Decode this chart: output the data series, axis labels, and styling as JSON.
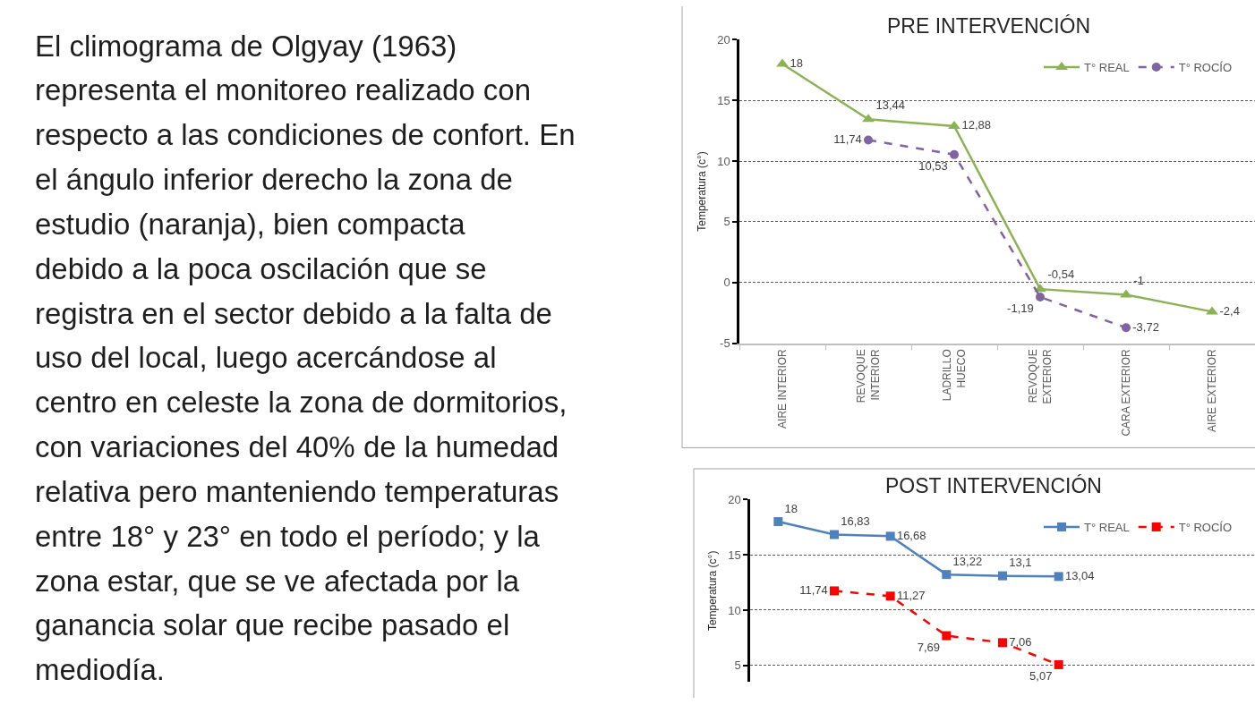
{
  "chart_data": [
    {
      "type": "other",
      "annotations": [
        "El climograma de Olgyay (1963)",
        "representa el monitoreo realizado con",
        "respecto a las condiciones de confort. En",
        "el ángulo inferior derecho la zona de",
        "estudio (naranja), bien compacta",
        "debido a la poca oscilación que se",
        "registra en el sector debido a la falta de",
        "uso del local, luego acercándose al",
        "centro en celeste la zona de dormitorios,",
        "con variaciones del 40% de la humedad",
        "relativa pero manteniendo temperaturas",
        "entre 18° y 23° en todo el período; y la",
        "zona estar, que se ve afectada por la",
        "ganancia solar que recibe pasado el",
        "mediodía."
      ]
    },
    {
      "type": "line",
      "title": "PRE INTERVENCIÓN",
      "ylabel": "Temperatura (c°)",
      "categories": [
        "AIRE INTERIOR",
        "REVOQUE\nINTERIOR",
        "LADRILLO\nHUECO",
        "REVOQUE\nEXTERIOR",
        "CARA EXTERIOR",
        "AIRE EXTERIOR"
      ],
      "series": [
        {
          "name": "T° REAL",
          "color": "#8db255",
          "marker": "triangle",
          "line_style": "solid",
          "values": [
            18,
            13.44,
            12.88,
            -0.54,
            -1,
            -2.4
          ],
          "value_labels": [
            "18",
            "13,44",
            "12,88",
            "-0,54",
            "-1",
            "-2,4"
          ]
        },
        {
          "name": "T° ROCÍO",
          "color": "#8064a2",
          "marker": "circle",
          "line_style": "dashed",
          "values": [
            null,
            11.74,
            10.53,
            -1.19,
            -3.72,
            null
          ],
          "value_labels": [
            null,
            "11,74",
            "10,53",
            "-1,19",
            "-3,72",
            null
          ]
        }
      ],
      "ylim": [
        -5,
        20
      ],
      "yticks": [
        -5,
        0,
        5,
        10,
        15,
        20
      ],
      "grid": "y",
      "legend": "top right"
    },
    {
      "type": "line",
      "title": "POST INTERVENCIÓN",
      "ylabel": "Temperatura (c°)",
      "categories": [
        null,
        null,
        null,
        null,
        null,
        null,
        null,
        null,
        null
      ],
      "series": [
        {
          "name": "T° REAL",
          "color": "#4f81bd",
          "marker": "square",
          "line_style": "solid",
          "values": [
            18,
            16.83,
            16.68,
            13.22,
            13.1,
            13.04,
            null,
            null,
            null
          ],
          "value_labels": [
            "18",
            "16,83",
            "16,68",
            "13,22",
            "13,1",
            "13,04",
            null,
            null,
            null
          ]
        },
        {
          "name": "T° ROCÍO",
          "color": "#ff0000",
          "marker": "square",
          "line_style": "dashed",
          "values": [
            null,
            11.74,
            11.27,
            7.69,
            7.06,
            5.07,
            null,
            null,
            null
          ],
          "value_labels": [
            null,
            "11,74",
            "11,27",
            "7,69",
            "7,06",
            "5,07",
            null,
            null,
            null
          ]
        }
      ],
      "ylim": [
        3.5,
        20
      ],
      "yticks": [
        5,
        10,
        15,
        20
      ],
      "grid": "y",
      "legend": "top right",
      "tick_labels": "y"
    }
  ]
}
